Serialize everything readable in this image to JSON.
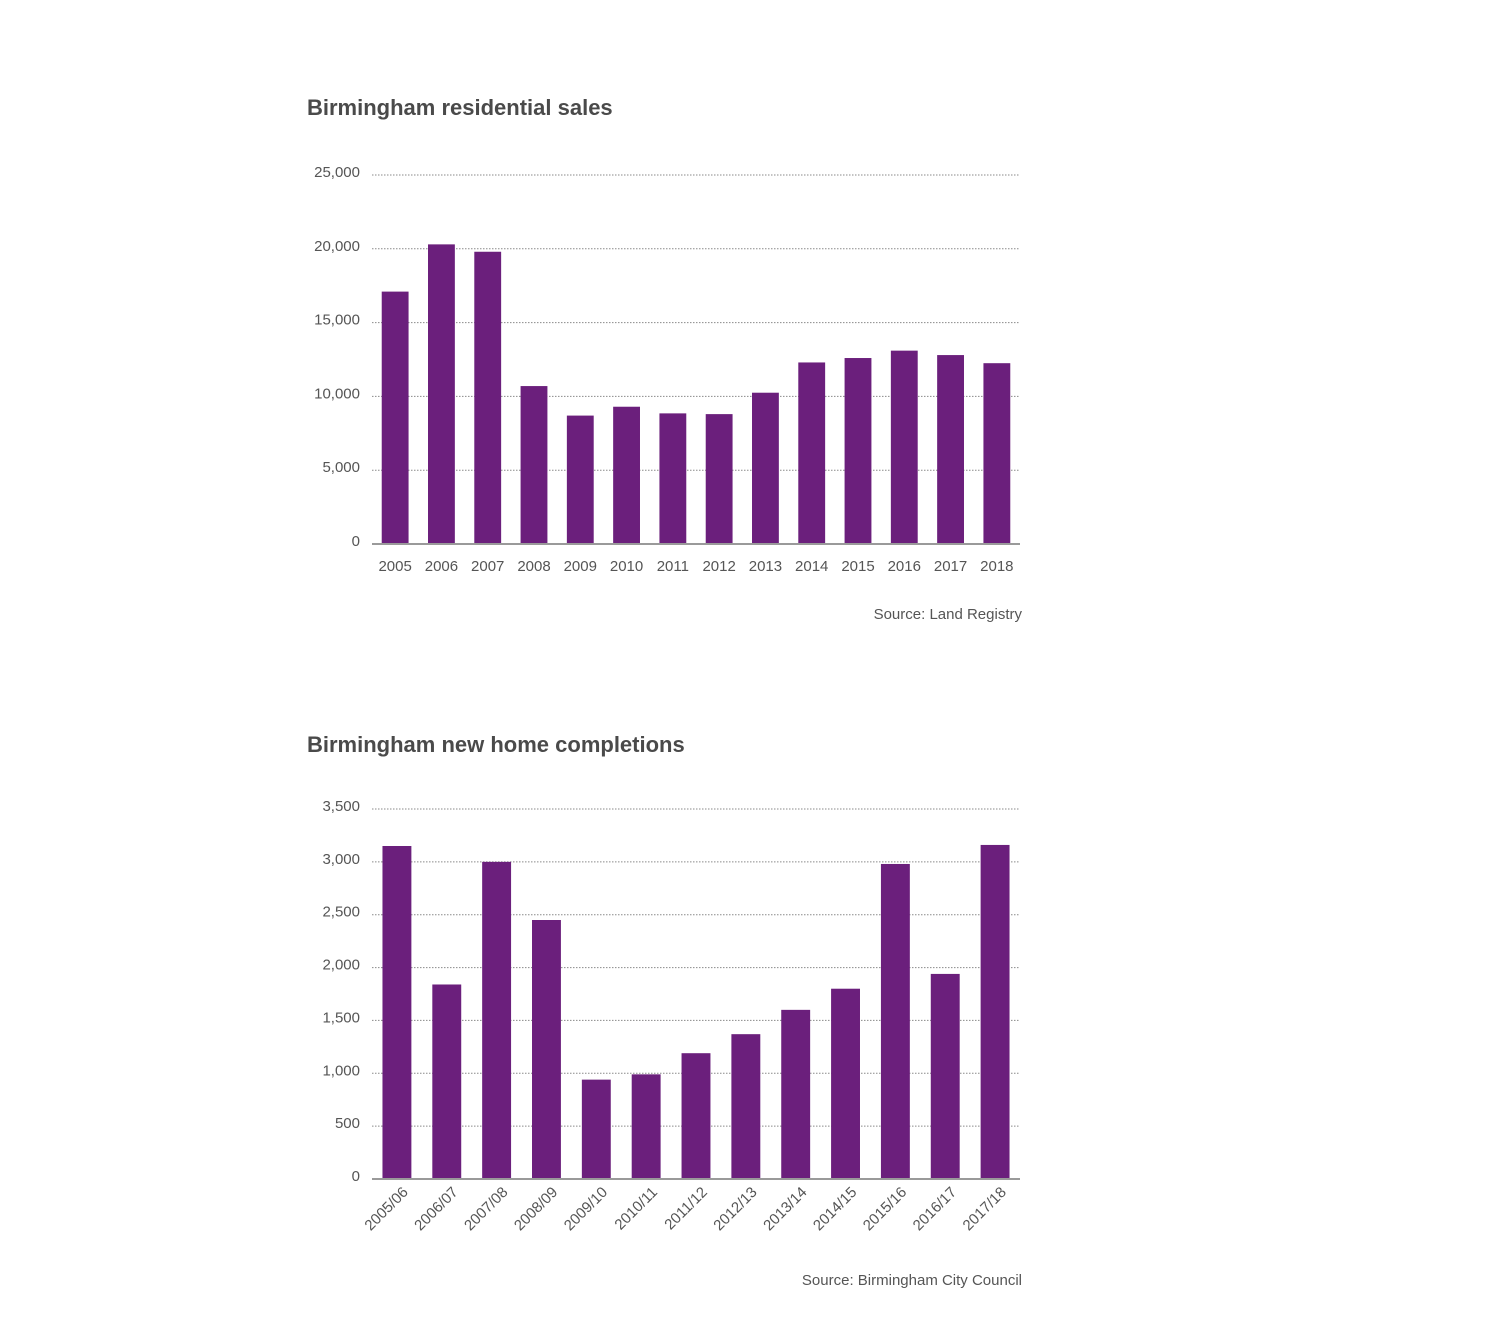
{
  "chart_data": [
    {
      "type": "bar",
      "title": "Birmingham residential sales",
      "source": "Source: Land Registry",
      "categories": [
        "2005",
        "2006",
        "2007",
        "2008",
        "2009",
        "2010",
        "2011",
        "2012",
        "2013",
        "2014",
        "2015",
        "2016",
        "2017",
        "2018"
      ],
      "values": [
        17100,
        20300,
        19800,
        10700,
        8700,
        9300,
        8850,
        8800,
        10250,
        12300,
        12600,
        13100,
        12800,
        12250
      ],
      "yticks": [
        "0",
        "5,000",
        "10,000",
        "15,000",
        "20,000",
        "25,000"
      ],
      "ylim": [
        0,
        25000
      ],
      "xlabel": "",
      "ylabel": "",
      "grid": true,
      "bar_color": "#6b1f7c"
    },
    {
      "type": "bar",
      "title": "Birmingham new home completions",
      "source": "Source: Birmingham City Council",
      "categories": [
        "2005/06",
        "2006/07",
        "2007/08",
        "2008/09",
        "2009/10",
        "2010/11",
        "2011/12",
        "2012/13",
        "2013/14",
        "2014/15",
        "2015/16",
        "2016/17",
        "2017/18"
      ],
      "values": [
        3150,
        1840,
        3000,
        2450,
        940,
        990,
        1190,
        1370,
        1600,
        1800,
        2980,
        1940,
        3160
      ],
      "yticks": [
        "0",
        "500",
        "1,000",
        "1,500",
        "2,000",
        "2,500",
        "3,000",
        "3,500"
      ],
      "ylim": [
        0,
        3500
      ],
      "xlabel": "",
      "ylabel": "",
      "grid": true,
      "bar_color": "#6b1f7c"
    }
  ]
}
